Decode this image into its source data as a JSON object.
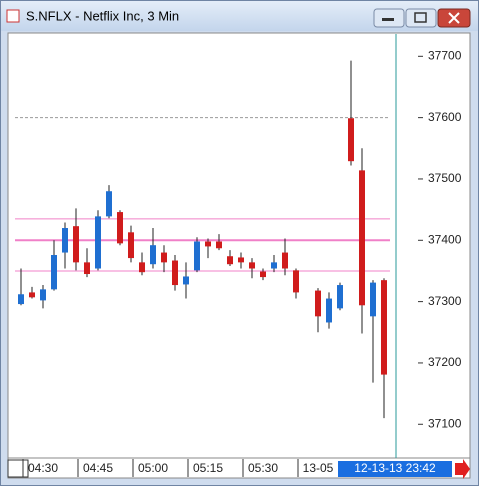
{
  "chart_data": {
    "type": "candlestick",
    "title": "S.NFLX - Netflix Inc, 3 Min",
    "categories": [
      null,
      null,
      "04:30",
      null,
      null,
      null,
      null,
      "04:45",
      null,
      null,
      null,
      null,
      "05:00",
      null,
      null,
      null,
      null,
      "05:15",
      null,
      null,
      null,
      null,
      "05:30",
      null,
      null,
      null,
      null,
      "13-05",
      null,
      null,
      null,
      null,
      null,
      null
    ],
    "cursor_label": "12-13-13 23:42",
    "open": [
      37296,
      37315,
      37302,
      37320,
      37380,
      37423,
      37364,
      37354,
      37439,
      37446,
      37413,
      37364,
      37361,
      37380,
      37367,
      37328,
      37351,
      37398,
      37398,
      37374,
      37372,
      37364,
      37349,
      37354,
      37380,
      37351,
      null,
      37318,
      37266,
      37289,
      37599,
      37514,
      37276,
      37335
    ],
    "high": [
      37354,
      37324,
      37327,
      37400,
      37429,
      37452,
      37387,
      37449,
      37490,
      37449,
      37424,
      37380,
      37420,
      37392,
      37376,
      37364,
      37405,
      37403,
      37410,
      37384,
      37380,
      37371,
      37354,
      37376,
      37403,
      37354,
      null,
      37322,
      37315,
      37331,
      37693,
      37550,
      37335,
      37338
    ],
    "low": [
      37294,
      37305,
      37289,
      37318,
      37354,
      37351,
      37340,
      37351,
      37436,
      37392,
      37364,
      37343,
      37354,
      37348,
      37318,
      37305,
      37348,
      37371,
      37384,
      37358,
      37354,
      37338,
      37335,
      37348,
      37343,
      37305,
      null,
      37250,
      37256,
      37286,
      37522,
      37248,
      37168,
      37110
    ],
    "close": [
      37312,
      37307,
      37320,
      37376,
      37420,
      37364,
      37345,
      37439,
      37480,
      37395,
      37371,
      37348,
      37392,
      37364,
      37327,
      37341,
      37398,
      37390,
      37387,
      37361,
      37364,
      37354,
      37340,
      37364,
      37354,
      37315,
      null,
      37276,
      37305,
      37327,
      37529,
      37294,
      37331,
      37181
    ],
    "up_color": "#1f6fd1",
    "down_color": "#d01c1c",
    "reference_lines": [
      {
        "value": 37600,
        "color": "#999999",
        "dashed": true
      },
      {
        "value": 37435,
        "color": "#f080c8",
        "dashed": false
      },
      {
        "value": 37400,
        "color": "#f080c8",
        "dashed": false
      },
      {
        "value": 37350,
        "color": "#f080c8",
        "dashed": false
      }
    ],
    "ylim": [
      37045,
      37738
    ],
    "yticks": [
      37100,
      37200,
      37300,
      37400,
      37500,
      37600,
      37700
    ]
  }
}
